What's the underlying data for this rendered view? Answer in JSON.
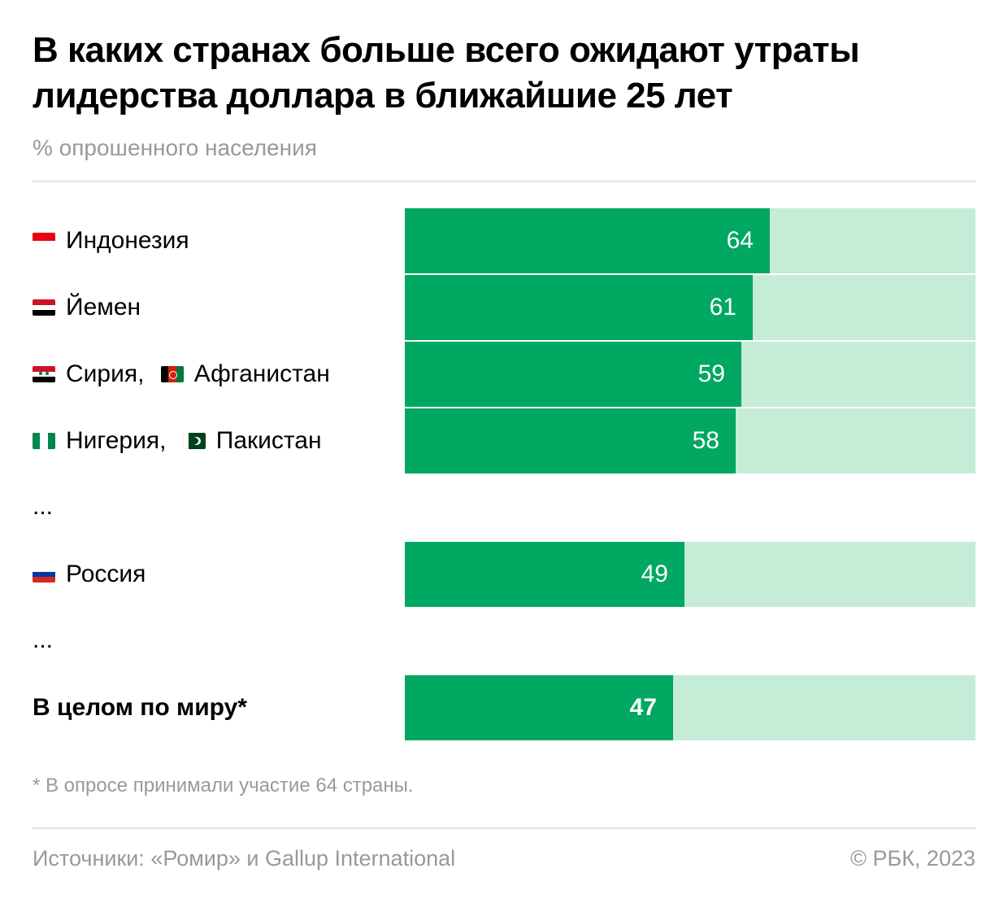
{
  "header": {
    "title": "В каких странах больше всего ожидают утраты лидерства доллара в ближайшие 25 лет",
    "subtitle": "% опрошенного населения"
  },
  "chart_data": {
    "type": "bar",
    "orientation": "horizontal",
    "xlim": [
      0,
      100
    ],
    "unit": "%",
    "rows": [
      {
        "kind": "bar",
        "label": "Индонезия",
        "flags": [
          "indonesia-flag-icon"
        ],
        "value": 64
      },
      {
        "kind": "bar",
        "label": "Йемен",
        "flags": [
          "yemen-flag-icon"
        ],
        "value": 61
      },
      {
        "kind": "bar",
        "label": "Сирия, ",
        "label2": "Афганистан",
        "flags": [
          "syria-flag-icon",
          "afghanistan-flag-icon"
        ],
        "value": 59
      },
      {
        "kind": "bar",
        "label": "Нигерия, ",
        "label2": "Пакистан",
        "flags": [
          "nigeria-flag-icon",
          "pakistan-flag-icon"
        ],
        "value": 58
      },
      {
        "kind": "gap",
        "label": "..."
      },
      {
        "kind": "bar",
        "label": "Россия",
        "flags": [
          "russia-flag-icon"
        ],
        "value": 49
      },
      {
        "kind": "gap",
        "label": "..."
      },
      {
        "kind": "bar",
        "label": "В целом по миру*",
        "flags": [],
        "value": 47,
        "emphasis": true
      }
    ],
    "colors": {
      "bar": "#00a862",
      "track": "#c4ecd7",
      "value_text": "#ffffff"
    }
  },
  "footer": {
    "footnote": "* В опросе принимали участие 64 страны.",
    "source": "Источники: «Ромир» и Gallup International",
    "copyright": "© РБК, 2023"
  }
}
